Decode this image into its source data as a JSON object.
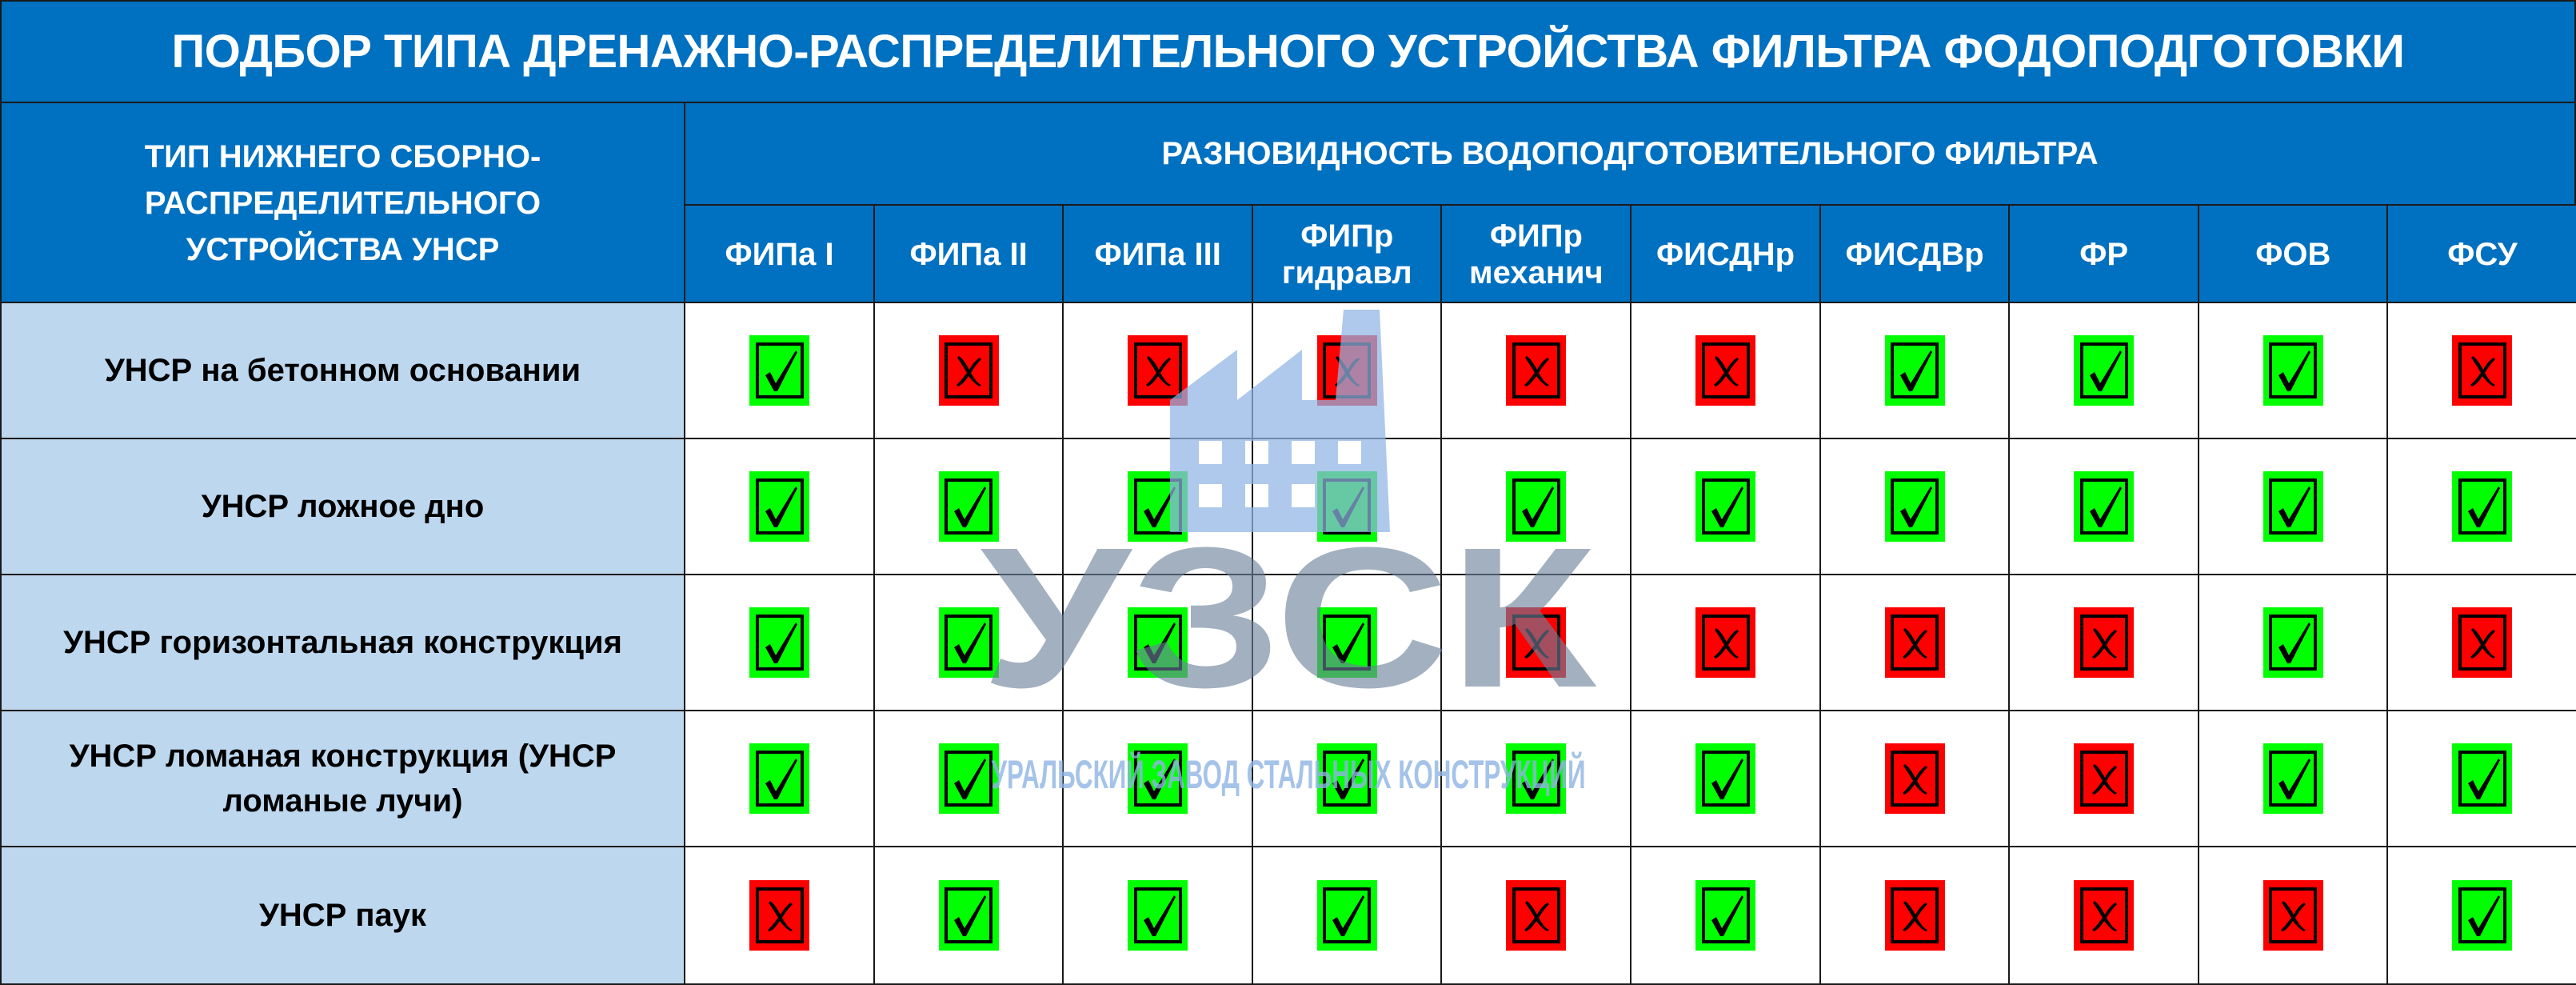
{
  "title": "ПОДБОР ТИПА ДРЕНАЖНО-РАСПРЕДЕЛИТЕЛЬНОГО УСТРОЙСТВА ФИЛЬТРА ФОДОПОДГОТОВКИ",
  "left_header": "ТИП НИЖНЕГО СБОРНО-РАСПРЕДЕЛИТЕЛЬНОГО УСТРОЙСТВА УНСР",
  "group_header": "РАЗНОВИДНОСТЬ ВОДОПОДГОТОВИТЕЛЬНОГО ФИЛЬТРА",
  "columns": [
    "ФИПа I",
    "ФИПа II",
    "ФИПа III",
    "ФИПр гидравл",
    "ФИПр механич",
    "ФИСДНр",
    "ФИСДВр",
    "ФР",
    "ФОВ",
    "ФСУ"
  ],
  "rows": [
    {
      "label": "УНСР на бетонном основании",
      "values": [
        1,
        0,
        0,
        0,
        0,
        0,
        1,
        1,
        1,
        0
      ]
    },
    {
      "label": "УНСР ложное дно",
      "values": [
        1,
        1,
        1,
        1,
        1,
        1,
        1,
        1,
        1,
        1
      ]
    },
    {
      "label": "УНСР горизонтальная конструкция",
      "values": [
        1,
        1,
        1,
        1,
        0,
        0,
        0,
        0,
        1,
        0
      ]
    },
    {
      "label": "УНСР ломаная конструкция (УНСР ломаные лучи)",
      "values": [
        1,
        1,
        1,
        1,
        1,
        1,
        0,
        0,
        1,
        1
      ]
    },
    {
      "label": "УНСР паук",
      "values": [
        0,
        1,
        1,
        1,
        0,
        1,
        0,
        0,
        0,
        1
      ]
    }
  ],
  "legend_icons": {
    "1": "checkmark-icon",
    "0": "cross-icon"
  },
  "colors": {
    "header": "#0070c0",
    "row_label": "#bdd7ee",
    "yes": "#00ff00",
    "no": "#ff0000"
  },
  "watermark": {
    "logo": "factory-icon",
    "text": "УЗСК",
    "subtitle": "УРАЛЬСКИЙ ЗАВОД СТАЛЬНЫХ КОНСТРУКЦИЙ"
  }
}
